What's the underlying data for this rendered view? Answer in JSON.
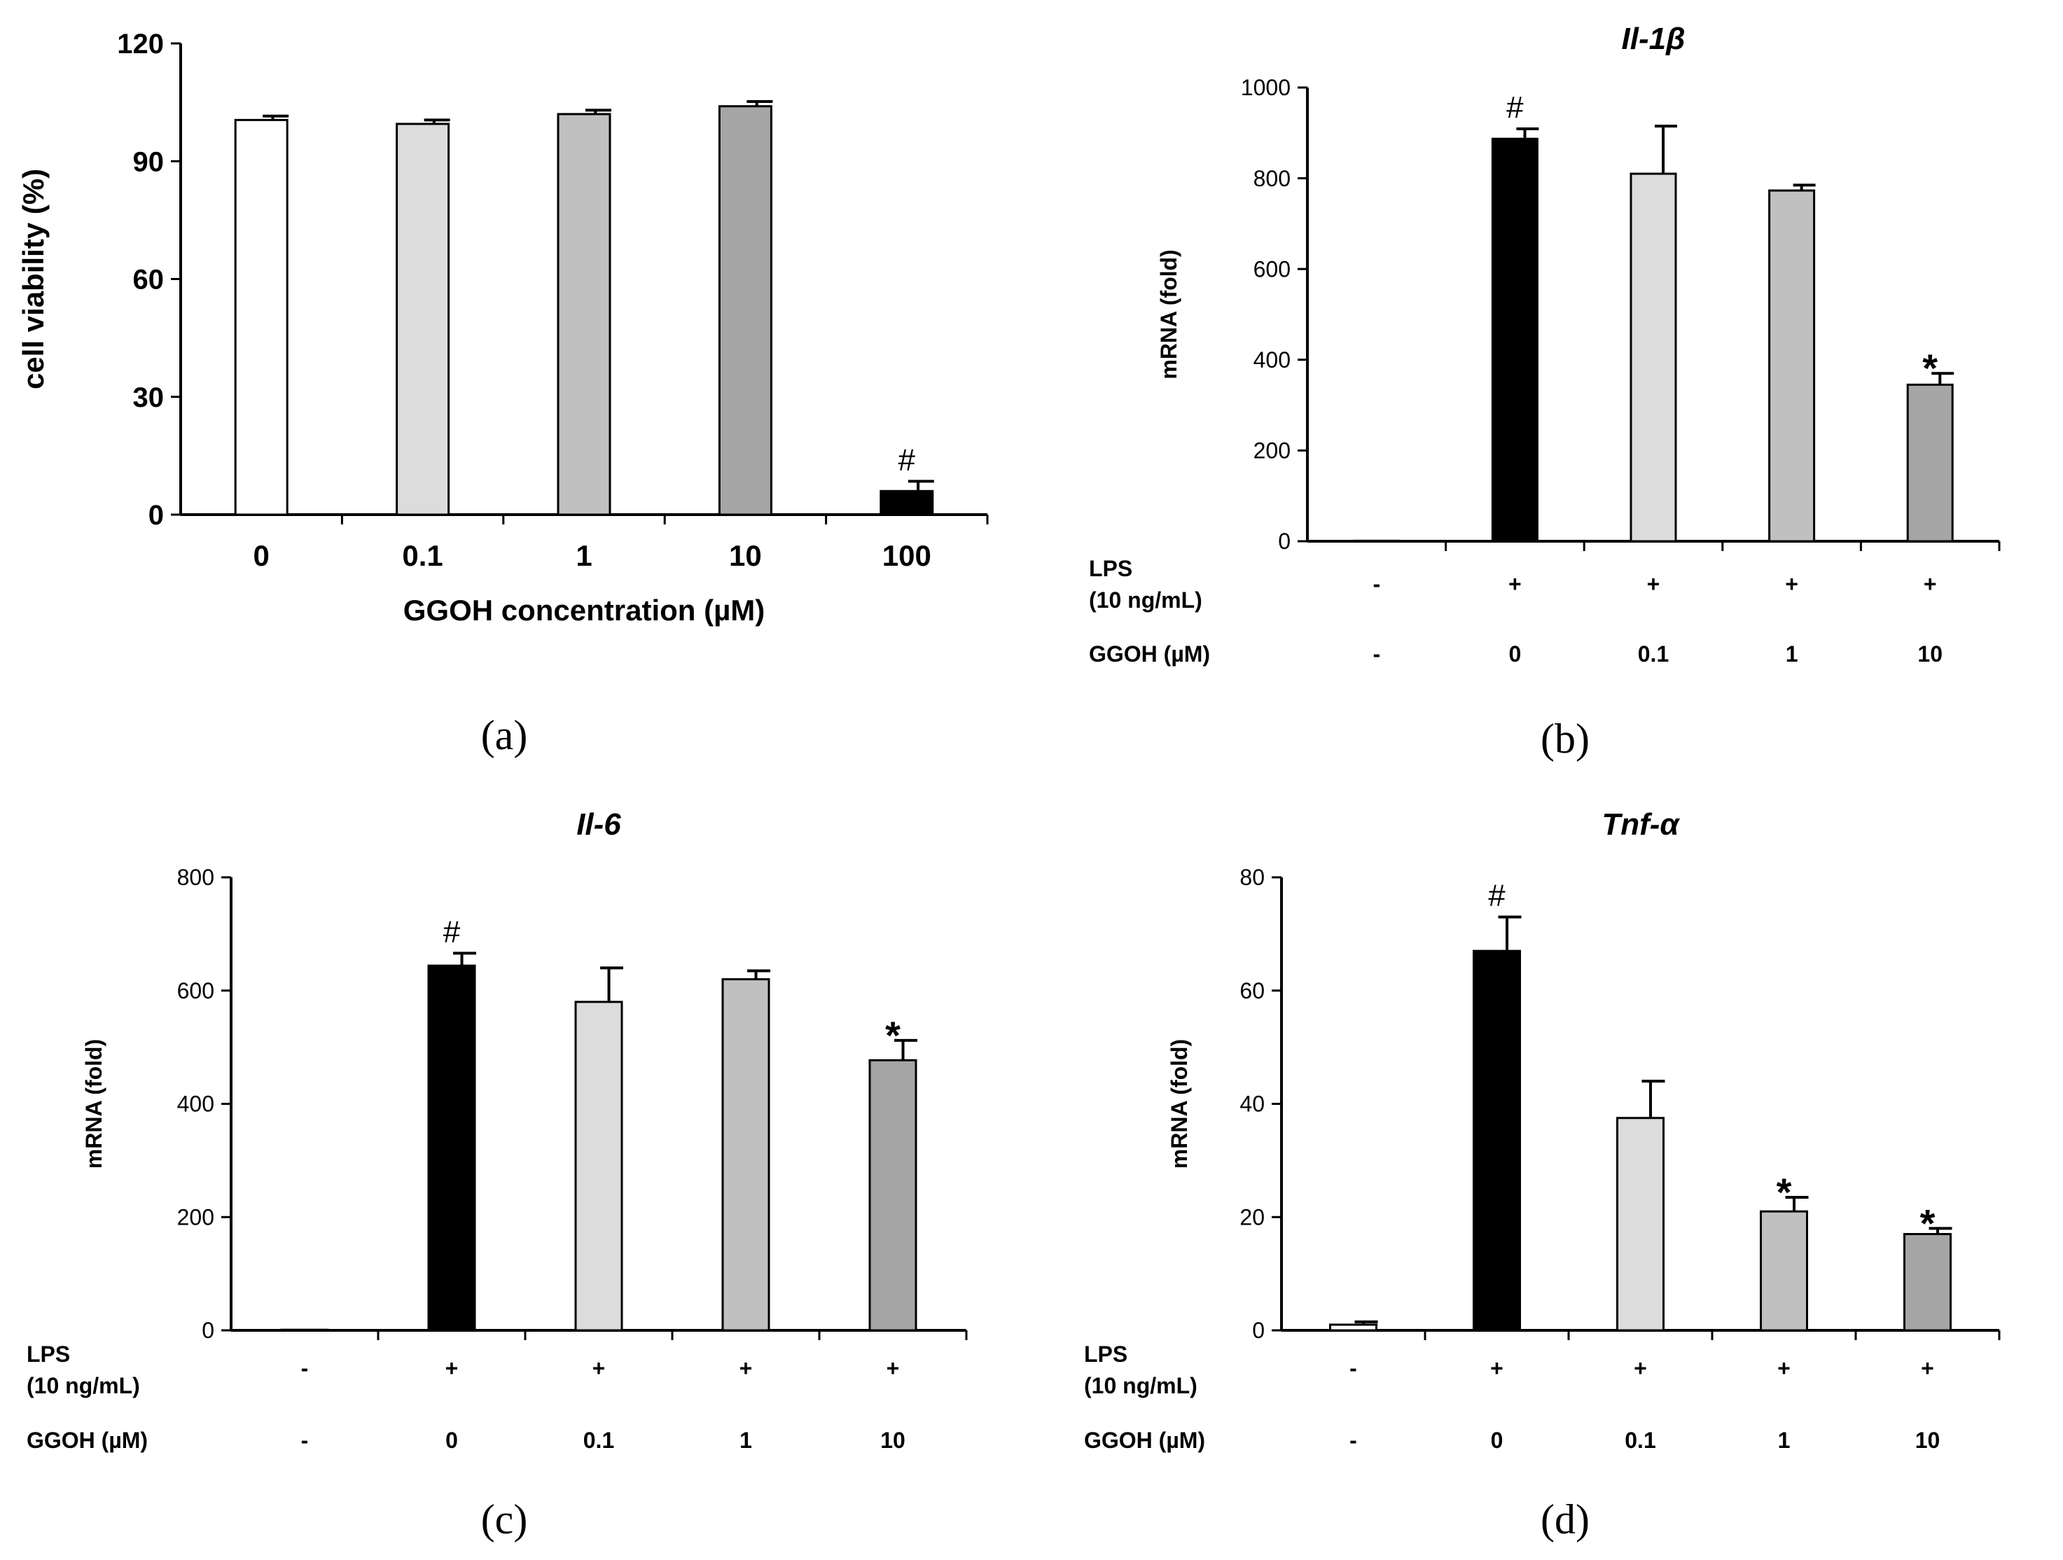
{
  "chart_data": [
    {
      "id": "a",
      "type": "bar",
      "title": "",
      "panel_label": "(a)",
      "ylabel": "cell viability (%)",
      "xlabel": "GGOH concentration (µM)",
      "categories": [
        "0",
        "0.1",
        "1",
        "10",
        "100"
      ],
      "values": [
        100.5,
        99.5,
        102,
        104,
        6
      ],
      "errors": [
        1,
        1,
        1,
        1.2,
        2.5
      ],
      "colors": [
        "#ffffff",
        "#dcdcdc",
        "#c0c0c0",
        "#a6a6a6",
        "#000000"
      ],
      "annotations": [
        "",
        "",
        "",
        "",
        "#"
      ],
      "ylim": [
        0,
        120
      ],
      "yticks": [
        "0",
        "30",
        "60",
        "90",
        "120"
      ]
    },
    {
      "id": "b",
      "type": "bar",
      "title": "Il-1β",
      "panel_label": "(b)",
      "ylabel": "mRNA (fold)",
      "conditions": [
        {
          "label": "LPS",
          "label2": "(10 ng/mL)",
          "values": [
            "-",
            "+",
            "+",
            "+",
            "+"
          ]
        },
        {
          "label": "GGOH (µM)",
          "label2": "",
          "values": [
            "-",
            "0",
            "0.1",
            "1",
            "10"
          ]
        }
      ],
      "values": [
        1,
        887,
        810,
        773,
        345
      ],
      "errors": [
        0,
        22,
        105,
        12,
        25
      ],
      "colors": [
        "#ffffff",
        "#000000",
        "#dcdcdc",
        "#c0c0c0",
        "#a6a6a6"
      ],
      "annotations": [
        "",
        "#",
        "",
        "",
        "*"
      ],
      "ylim": [
        0,
        1000
      ],
      "yticks": [
        "0",
        "200",
        "400",
        "600",
        "800",
        "1000"
      ]
    },
    {
      "id": "c",
      "type": "bar",
      "title": "Il-6",
      "panel_label": "(c)",
      "ylabel": "mRNA (fold)",
      "conditions": [
        {
          "label": "LPS",
          "label2": "(10 ng/mL)",
          "values": [
            "-",
            "+",
            "+",
            "+",
            "+"
          ]
        },
        {
          "label": "GGOH (µM)",
          "label2": "",
          "values": [
            "-",
            "0",
            "0.1",
            "1",
            "10"
          ]
        }
      ],
      "values": [
        1,
        644,
        580,
        620,
        477
      ],
      "errors": [
        0,
        22,
        60,
        15,
        35
      ],
      "colors": [
        "#ffffff",
        "#000000",
        "#dcdcdc",
        "#c0c0c0",
        "#a6a6a6"
      ],
      "annotations": [
        "",
        "#",
        "",
        "",
        "*"
      ],
      "ylim": [
        0,
        800
      ],
      "yticks": [
        "0",
        "200",
        "400",
        "600",
        "800"
      ]
    },
    {
      "id": "d",
      "type": "bar",
      "title": "Tnf-α",
      "panel_label": "(d)",
      "ylabel": "mRNA (fold)",
      "conditions": [
        {
          "label": "LPS",
          "label2": "(10 ng/mL)",
          "values": [
            "-",
            "+",
            "+",
            "+",
            "+"
          ]
        },
        {
          "label": "GGOH (µM)",
          "label2": "",
          "values": [
            "-",
            "0",
            "0.1",
            "1",
            "10"
          ]
        }
      ],
      "values": [
        1,
        67,
        37.5,
        21,
        17
      ],
      "errors": [
        0.5,
        6,
        6.5,
        2.5,
        1
      ],
      "colors": [
        "#ffffff",
        "#000000",
        "#dcdcdc",
        "#c0c0c0",
        "#a6a6a6"
      ],
      "annotations": [
        "",
        "#",
        "",
        "*",
        "*"
      ],
      "ylim": [
        0,
        80
      ],
      "yticks": [
        "0",
        "20",
        "40",
        "60",
        "80"
      ]
    }
  ]
}
